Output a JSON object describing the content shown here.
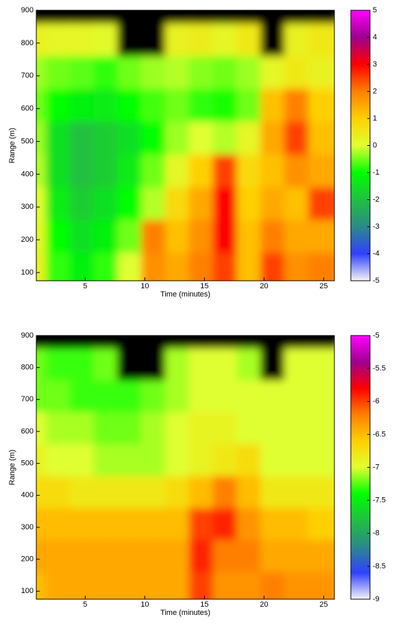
{
  "chart_data": [
    {
      "type": "heatmap",
      "xlabel": "Time (minutes)",
      "ylabel": "Range (m)",
      "x": [
        1,
        3,
        5,
        7,
        9,
        11,
        13,
        15,
        17,
        19,
        21,
        23,
        25
      ],
      "y": [
        900,
        800,
        700,
        600,
        500,
        400,
        300,
        200,
        100
      ],
      "z": [
        [
          null,
          null,
          null,
          null,
          null,
          null,
          null,
          null,
          null,
          null,
          null,
          null,
          null
        ],
        [
          0.3,
          0.2,
          0.2,
          0.1,
          null,
          null,
          0.3,
          0.4,
          0.2,
          0.5,
          null,
          0.3,
          0.5
        ],
        [
          -0.3,
          -0.5,
          -0.6,
          -0.8,
          -0.5,
          -0.3,
          -0.2,
          -0.4,
          -0.5,
          -0.3,
          0.2,
          0.5,
          0.3
        ],
        [
          -0.5,
          -1,
          -1.2,
          -1.3,
          -1,
          -0.7,
          -0.5,
          -0.8,
          -0.9,
          -0.5,
          1.2,
          2,
          1
        ],
        [
          -0.3,
          -1.5,
          -2,
          -1.8,
          -1.5,
          -1,
          -0.3,
          0,
          -0.2,
          0.2,
          1.5,
          2.5,
          1.2
        ],
        [
          -0.2,
          -1.5,
          -2,
          -1.8,
          -1.3,
          -0.5,
          0.2,
          1,
          2.5,
          0.8,
          1.2,
          1.8,
          1.5
        ],
        [
          0,
          -1.3,
          -1.8,
          -1.5,
          -1,
          -0.2,
          0.8,
          1.5,
          3,
          1,
          1.5,
          1.2,
          2.5
        ],
        [
          0.2,
          -1,
          -1.5,
          -1.2,
          -0.5,
          2,
          1.2,
          1.8,
          3,
          1.2,
          2,
          1.5,
          1.5
        ],
        [
          0.3,
          -0.8,
          -1.2,
          -0.8,
          0,
          1.8,
          1.5,
          2,
          2.5,
          1.2,
          2.5,
          1.8,
          2
        ]
      ],
      "xlim": [
        0.9,
        25.9
      ],
      "ylim": [
        75,
        900
      ],
      "xticks": [
        5,
        10,
        15,
        20,
        25
      ],
      "yticks": [
        100,
        200,
        300,
        400,
        500,
        600,
        700,
        800,
        900
      ],
      "clim": [
        -5,
        5
      ],
      "cticks": [
        -5,
        -4,
        -3,
        -2,
        -1,
        0,
        1,
        2,
        3,
        4,
        5
      ],
      "colormap": [
        "#f4f4f4",
        "#3040ff",
        "#2a8a8a",
        "#20c040",
        "#00ff00",
        "#e0ff30",
        "#ffd000",
        "#ff8000",
        "#ff0000",
        "#a00090",
        "#ff00ff"
      ],
      "nan_color": "#000000"
    },
    {
      "type": "heatmap",
      "xlabel": "Time (minutes)",
      "ylabel": "Range (m)",
      "x": [
        1,
        3,
        5,
        7,
        9,
        11,
        13,
        15,
        17,
        19,
        21,
        23,
        25
      ],
      "y": [
        900,
        800,
        700,
        600,
        500,
        400,
        300,
        200,
        100
      ],
      "z": [
        [
          null,
          null,
          null,
          null,
          null,
          null,
          null,
          null,
          null,
          null,
          null,
          null,
          null
        ],
        [
          -7.2,
          -7.3,
          -7.3,
          -7.2,
          null,
          null,
          -7.1,
          -7,
          -7,
          -7.1,
          null,
          -7,
          -7
        ],
        [
          -7.2,
          -7.2,
          -7.3,
          -7.3,
          -7.3,
          -7.2,
          -7.1,
          -7,
          -7,
          -7,
          -7,
          -7,
          -7
        ],
        [
          -7,
          -7.1,
          -7.1,
          -7.2,
          -7.2,
          -7.1,
          -7,
          -6.9,
          -6.9,
          -7,
          -7,
          -7,
          -7
        ],
        [
          -6.9,
          -7,
          -7,
          -7.1,
          -7.1,
          -7.1,
          -7,
          -6.9,
          -6.8,
          -6.7,
          -7,
          -7,
          -7
        ],
        [
          -6.7,
          -6.7,
          -6.8,
          -6.8,
          -6.8,
          -6.8,
          -6.7,
          -6.5,
          -6.2,
          -6.5,
          -6.8,
          -6.8,
          -6.8
        ],
        [
          -6.5,
          -6.5,
          -6.5,
          -6.5,
          -6.5,
          -6.5,
          -6.5,
          -6,
          -5.9,
          -6.3,
          -6.5,
          -6.5,
          -6.6
        ],
        [
          -6.4,
          -6.4,
          -6.4,
          -6.4,
          -6.4,
          -6.4,
          -6.4,
          -5.9,
          -6.2,
          -6.2,
          -6.4,
          -6.4,
          -6.4
        ],
        [
          -6.5,
          -6.4,
          -6.4,
          -6.4,
          -6.4,
          -6.4,
          -6.4,
          -6,
          -6.3,
          -6.3,
          -6.2,
          -6.3,
          -6.3
        ]
      ],
      "xlim": [
        0.9,
        25.9
      ],
      "ylim": [
        75,
        900
      ],
      "xticks": [
        5,
        10,
        15,
        20,
        25
      ],
      "yticks": [
        100,
        200,
        300,
        400,
        500,
        600,
        700,
        800,
        900
      ],
      "clim": [
        -9,
        -5
      ],
      "cticks": [
        -9,
        -8.5,
        -8,
        -7.5,
        -7,
        -6.5,
        -6,
        -5.5,
        -5
      ],
      "colormap": [
        "#f4f4f4",
        "#3040ff",
        "#2a8a8a",
        "#20c040",
        "#00ff00",
        "#e0ff30",
        "#ffd000",
        "#ff8000",
        "#ff0000",
        "#a00090",
        "#ff00ff"
      ],
      "nan_color": "#000000"
    }
  ]
}
